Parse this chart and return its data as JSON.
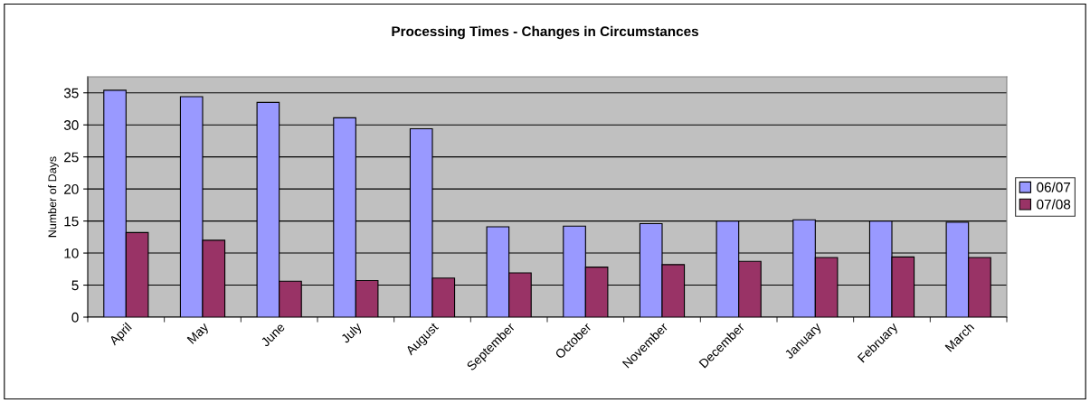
{
  "chart_data": {
    "type": "bar",
    "title": "Processing Times - Changes in Circumstances",
    "ylabel": "Number of Days",
    "categories": [
      "April",
      "May",
      "June",
      "July",
      "August",
      "September",
      "October",
      "November",
      "December",
      "January",
      "February",
      "March"
    ],
    "series": [
      {
        "name": "06/07",
        "color": "#9999ff",
        "values": [
          35.4,
          34.4,
          33.5,
          31.1,
          29.4,
          14.1,
          14.2,
          14.6,
          15.0,
          15.2,
          15.0,
          14.8
        ]
      },
      {
        "name": "07/08",
        "color": "#993366",
        "values": [
          13.2,
          12.0,
          5.6,
          5.7,
          6.1,
          6.9,
          7.8,
          8.2,
          8.7,
          9.3,
          9.4,
          9.3
        ]
      }
    ],
    "ylim": [
      0,
      37.5
    ],
    "yticks": [
      0,
      5,
      10,
      15,
      20,
      25,
      30,
      35
    ],
    "grid": "y",
    "legend": "right"
  }
}
